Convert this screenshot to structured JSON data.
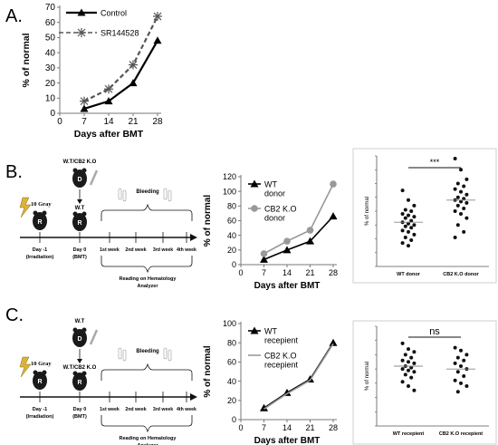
{
  "panel_labels": [
    "A.",
    "B.",
    "C."
  ],
  "chart_data": [
    {
      "type": "line",
      "id": "A",
      "x": [
        7,
        14,
        21,
        28
      ],
      "xlabel": "Days after BMT",
      "ylabel": "% of normal",
      "xlim": [
        0,
        28
      ],
      "ylim": [
        0,
        70
      ],
      "xticks": [
        0,
        7,
        14,
        21,
        28
      ],
      "yticks": [
        0,
        10,
        20,
        30,
        40,
        50,
        60,
        70
      ],
      "series": [
        {
          "name": "Control",
          "values": [
            3,
            8,
            20,
            48
          ],
          "color": "#000000",
          "marker": "triangle",
          "dash": "solid"
        },
        {
          "name": "SR144528",
          "values": [
            8,
            16,
            32,
            64
          ],
          "color": "#555555",
          "marker": "star",
          "dash": "dashed"
        }
      ],
      "legend": "top-left"
    },
    {
      "type": "line",
      "id": "B",
      "x": [
        7,
        14,
        21,
        28
      ],
      "xlabel": "Days after BMT",
      "ylabel": "% of normal",
      "xlim": [
        0,
        28
      ],
      "ylim": [
        0,
        120
      ],
      "xticks": [
        0,
        7,
        14,
        21,
        28
      ],
      "yticks": [
        0,
        20,
        40,
        60,
        80,
        100,
        120
      ],
      "series": [
        {
          "name": "WT donor",
          "label_lines": [
            "WT",
            "donor"
          ],
          "values": [
            7,
            20,
            32,
            66
          ],
          "color": "#000000",
          "marker": "triangle"
        },
        {
          "name": "CB2 K.O donor",
          "label_lines": [
            "CB2 K.O",
            "donor"
          ],
          "values": [
            15,
            32,
            47,
            110
          ],
          "color": "#999999",
          "marker": "circle"
        }
      ],
      "legend": "top-left"
    },
    {
      "type": "scatter",
      "id": "B-dot",
      "ylabel": "% of normal",
      "categories": [
        "WT donor",
        "CB2 K.O donor"
      ],
      "significance": "***",
      "ylim": [
        0,
        80
      ],
      "series": [
        {
          "name": "WT donor",
          "values": [
            55,
            48,
            44,
            41,
            40,
            38,
            37,
            36,
            35,
            33,
            32,
            31,
            30,
            29,
            28,
            26,
            25,
            23,
            21,
            19,
            17,
            15
          ],
          "median": 32
        },
        {
          "name": "CB2 K.O donor",
          "values": [
            78,
            70,
            63,
            60,
            58,
            56,
            54,
            52,
            50,
            49,
            48,
            47,
            46,
            44,
            42,
            40,
            38,
            35,
            30,
            25,
            21
          ],
          "median": 48
        }
      ]
    },
    {
      "type": "line",
      "id": "C",
      "x": [
        7,
        14,
        21,
        28
      ],
      "xlabel": "Days after BMT",
      "ylabel": "% of normal",
      "xlim": [
        0,
        28
      ],
      "ylim": [
        0,
        100
      ],
      "xticks": [
        0,
        7,
        14,
        21,
        28
      ],
      "yticks": [
        0,
        20,
        40,
        60,
        80,
        100
      ],
      "series": [
        {
          "name": "WT recepient",
          "label_lines": [
            "WT",
            "recepient"
          ],
          "values": [
            12,
            28,
            42,
            80
          ],
          "color": "#000000",
          "marker": "triangle"
        },
        {
          "name": "CB2 K.O recepient",
          "label_lines": [
            "CB2 K.O",
            "recepient"
          ],
          "values": [
            11,
            27,
            41,
            79
          ],
          "color": "#999999",
          "marker": "line"
        }
      ],
      "legend": "top-left"
    },
    {
      "type": "scatter",
      "id": "C-dot",
      "ylabel": "% of normal",
      "categories": [
        "WT recepient",
        "CB2 K.O recepient"
      ],
      "significance": "ns",
      "ylim": [
        0,
        70
      ],
      "series": [
        {
          "name": "WT recepient",
          "values": [
            58,
            54,
            52,
            50,
            48,
            46,
            45,
            44,
            42,
            41,
            40,
            39,
            38,
            36,
            34,
            31,
            28,
            25
          ],
          "median": 42
        },
        {
          "name": "CB2 K.O recepient",
          "values": [
            55,
            53,
            50,
            48,
            46,
            44,
            42,
            40,
            38,
            35,
            32,
            30,
            28,
            24
          ],
          "median": 40
        }
      ]
    }
  ],
  "diagrams": [
    {
      "id": "B",
      "dose": "10 Gray",
      "top_label": "W.T/CB2 K.O",
      "donor_letter": "D",
      "recipient_letter": "R",
      "mid_label": "W.T",
      "bleeding": "Bleeding",
      "day_minus1": [
        "Day -1",
        "(Irradiation)"
      ],
      "day0": [
        "Day 0",
        "(BMT)"
      ],
      "weeks": [
        "1st week",
        "2nd week",
        "3rd week",
        "4th week"
      ],
      "reading": [
        "Reading on Hematology",
        "Analyzer"
      ]
    },
    {
      "id": "C",
      "dose": "10 Gray",
      "top_label": "W.T",
      "donor_letter": "D",
      "recipient_letter": "R",
      "mid_label": "W.T/CB2 K.O",
      "bleeding": "Bleeding",
      "day_minus1": [
        "Day -1",
        "(Irradiation)"
      ],
      "day0": [
        "Day 0",
        "(BMT)"
      ],
      "weeks": [
        "1st week",
        "2nd week",
        "3rd week",
        "4th week"
      ],
      "reading": [
        "Reading on Hematology",
        "Analyzer"
      ]
    }
  ]
}
